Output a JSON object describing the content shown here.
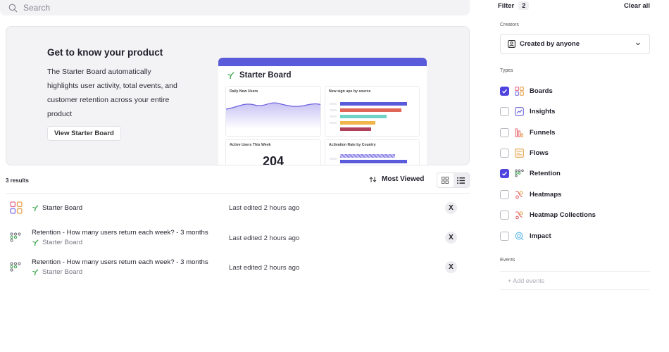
{
  "search": {
    "placeholder": "Search"
  },
  "hero": {
    "title": "Get to know your product",
    "description": "The Starter Board automatically highlights user activity, total events, and customer retention across your entire product",
    "button_label": "View Starter Board",
    "preview": {
      "title": "Starter Board",
      "cards": {
        "daily_new_users": "Daily New Users",
        "new_signups": "New sign ups by source",
        "active_users": "Active Users This Week",
        "active_users_value": "204",
        "activation_rate": "Activation Rate by Country"
      },
      "bar_colors": [
        "#5a5bdb",
        "#e0665a",
        "#6fd3c8",
        "#f0b64c",
        "#b0435a"
      ]
    }
  },
  "results": {
    "count_label": "3 results",
    "sort_label": "Most Viewed",
    "rows": [
      {
        "name": "Starter Board",
        "subtitle": "",
        "edited": "Last edited 2 hours ago",
        "avatar": "X",
        "kind": "board"
      },
      {
        "name": "Retention - How many users return each week? - 3 months",
        "subtitle": "Starter Board",
        "edited": "Last edited 2 hours ago",
        "avatar": "X",
        "kind": "retention"
      },
      {
        "name": "Retention - How many users return each week? - 3 months",
        "subtitle": "Starter Board",
        "edited": "Last edited 2 hours ago",
        "avatar": "X",
        "kind": "retention"
      }
    ]
  },
  "filter": {
    "title": "Filter",
    "count": "2",
    "clear_label": "Clear all",
    "creators_label": "Creators",
    "creators_value": "Created by anyone",
    "types_label": "Types",
    "types": [
      {
        "label": "Boards",
        "checked": true,
        "icon": "boards-icon"
      },
      {
        "label": "Insights",
        "checked": false,
        "icon": "insights-icon"
      },
      {
        "label": "Funnels",
        "checked": false,
        "icon": "funnels-icon"
      },
      {
        "label": "Flows",
        "checked": false,
        "icon": "flows-icon"
      },
      {
        "label": "Retention",
        "checked": true,
        "icon": "retention-icon"
      },
      {
        "label": "Heatmaps",
        "checked": false,
        "icon": "heatmaps-icon"
      },
      {
        "label": "Heatmap Collections",
        "checked": false,
        "icon": "heatmap-collections-icon"
      },
      {
        "label": "Impact",
        "checked": false,
        "icon": "impact-icon"
      }
    ],
    "events_label": "Events",
    "events_placeholder": "+  Add events"
  },
  "colors": {
    "accent": "#4f44e0",
    "sprout": "#3aa34a",
    "brand_bar": "#5a5bdb"
  }
}
